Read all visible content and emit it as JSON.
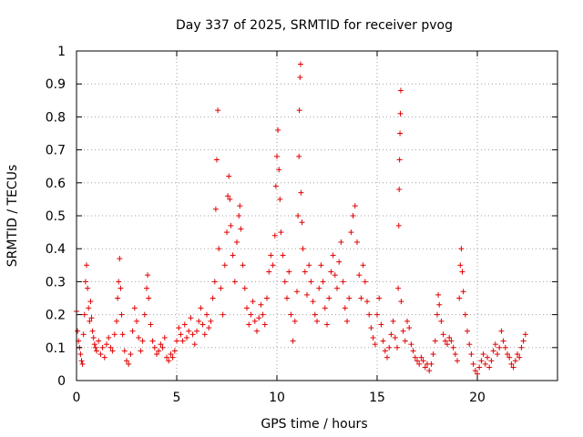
{
  "chart_data": {
    "type": "scatter",
    "title": "Day 337 of 2025, SRMTID for receiver pvog",
    "xlabel": "GPS time / hours",
    "ylabel": "SRMTID / TECUs",
    "xlim": [
      0,
      24
    ],
    "ylim": [
      0,
      1
    ],
    "x_ticks": [
      "0",
      "5",
      "10",
      "15",
      "20"
    ],
    "y_ticks": [
      "0",
      "0.1",
      "0.2",
      "0.3",
      "0.4",
      "0.5",
      "0.6",
      "0.7",
      "0.8",
      "0.9",
      "1"
    ],
    "grid": true,
    "marker": "+",
    "color": "#e00000",
    "series": [
      {
        "name": "pvog",
        "points": [
          [
            0.0,
            0.21
          ],
          [
            0.05,
            0.15
          ],
          [
            0.1,
            0.12
          ],
          [
            0.15,
            0.1
          ],
          [
            0.2,
            0.08
          ],
          [
            0.25,
            0.06
          ],
          [
            0.3,
            0.05
          ],
          [
            0.35,
            0.14
          ],
          [
            0.4,
            0.2
          ],
          [
            0.45,
            0.3
          ],
          [
            0.5,
            0.35
          ],
          [
            0.55,
            0.28
          ],
          [
            0.6,
            0.22
          ],
          [
            0.65,
            0.18
          ],
          [
            0.7,
            0.24
          ],
          [
            0.75,
            0.19
          ],
          [
            0.8,
            0.15
          ],
          [
            0.85,
            0.13
          ],
          [
            0.9,
            0.11
          ],
          [
            0.95,
            0.1
          ],
          [
            1.0,
            0.09
          ],
          [
            1.1,
            0.12
          ],
          [
            1.2,
            0.08
          ],
          [
            1.3,
            0.1
          ],
          [
            1.4,
            0.07
          ],
          [
            1.5,
            0.11
          ],
          [
            1.6,
            0.13
          ],
          [
            1.7,
            0.1
          ],
          [
            1.8,
            0.09
          ],
          [
            1.9,
            0.14
          ],
          [
            2.0,
            0.18
          ],
          [
            2.05,
            0.25
          ],
          [
            2.1,
            0.3
          ],
          [
            2.15,
            0.37
          ],
          [
            2.2,
            0.28
          ],
          [
            2.25,
            0.2
          ],
          [
            2.3,
            0.14
          ],
          [
            2.4,
            0.09
          ],
          [
            2.5,
            0.06
          ],
          [
            2.6,
            0.05
          ],
          [
            2.7,
            0.08
          ],
          [
            2.8,
            0.15
          ],
          [
            2.9,
            0.22
          ],
          [
            3.0,
            0.18
          ],
          [
            3.1,
            0.13
          ],
          [
            3.2,
            0.09
          ],
          [
            3.3,
            0.12
          ],
          [
            3.4,
            0.2
          ],
          [
            3.5,
            0.28
          ],
          [
            3.55,
            0.32
          ],
          [
            3.6,
            0.25
          ],
          [
            3.7,
            0.17
          ],
          [
            3.8,
            0.12
          ],
          [
            3.9,
            0.1
          ],
          [
            4.0,
            0.08
          ],
          [
            4.1,
            0.09
          ],
          [
            4.2,
            0.11
          ],
          [
            4.3,
            0.1
          ],
          [
            4.4,
            0.13
          ],
          [
            4.5,
            0.07
          ],
          [
            4.6,
            0.06
          ],
          [
            4.7,
            0.08
          ],
          [
            4.8,
            0.07
          ],
          [
            4.9,
            0.09
          ],
          [
            5.0,
            0.12
          ],
          [
            5.1,
            0.16
          ],
          [
            5.2,
            0.14
          ],
          [
            5.3,
            0.12
          ],
          [
            5.4,
            0.17
          ],
          [
            5.5,
            0.13
          ],
          [
            5.6,
            0.15
          ],
          [
            5.7,
            0.19
          ],
          [
            5.8,
            0.14
          ],
          [
            5.9,
            0.11
          ],
          [
            6.0,
            0.15
          ],
          [
            6.1,
            0.18
          ],
          [
            6.2,
            0.22
          ],
          [
            6.3,
            0.17
          ],
          [
            6.4,
            0.14
          ],
          [
            6.5,
            0.2
          ],
          [
            6.6,
            0.16
          ],
          [
            6.7,
            0.18
          ],
          [
            6.8,
            0.25
          ],
          [
            6.9,
            0.3
          ],
          [
            6.95,
            0.52
          ],
          [
            7.0,
            0.67
          ],
          [
            7.05,
            0.82
          ],
          [
            7.1,
            0.4
          ],
          [
            7.2,
            0.28
          ],
          [
            7.3,
            0.2
          ],
          [
            7.4,
            0.35
          ],
          [
            7.5,
            0.45
          ],
          [
            7.55,
            0.56
          ],
          [
            7.6,
            0.62
          ],
          [
            7.65,
            0.55
          ],
          [
            7.7,
            0.47
          ],
          [
            7.8,
            0.38
          ],
          [
            7.9,
            0.3
          ],
          [
            8.0,
            0.42
          ],
          [
            8.1,
            0.5
          ],
          [
            8.15,
            0.53
          ],
          [
            8.2,
            0.46
          ],
          [
            8.3,
            0.35
          ],
          [
            8.4,
            0.28
          ],
          [
            8.5,
            0.22
          ],
          [
            8.6,
            0.17
          ],
          [
            8.7,
            0.2
          ],
          [
            8.8,
            0.24
          ],
          [
            8.9,
            0.18
          ],
          [
            9.0,
            0.15
          ],
          [
            9.1,
            0.19
          ],
          [
            9.2,
            0.23
          ],
          [
            9.3,
            0.2
          ],
          [
            9.4,
            0.17
          ],
          [
            9.5,
            0.25
          ],
          [
            9.6,
            0.33
          ],
          [
            9.7,
            0.38
          ],
          [
            9.8,
            0.35
          ],
          [
            9.9,
            0.44
          ],
          [
            9.95,
            0.59
          ],
          [
            10.0,
            0.68
          ],
          [
            10.05,
            0.76
          ],
          [
            10.1,
            0.64
          ],
          [
            10.15,
            0.55
          ],
          [
            10.2,
            0.45
          ],
          [
            10.3,
            0.38
          ],
          [
            10.4,
            0.3
          ],
          [
            10.5,
            0.25
          ],
          [
            10.6,
            0.33
          ],
          [
            10.7,
            0.2
          ],
          [
            10.8,
            0.12
          ],
          [
            10.9,
            0.18
          ],
          [
            11.0,
            0.27
          ],
          [
            11.05,
            0.5
          ],
          [
            11.1,
            0.68
          ],
          [
            11.12,
            0.82
          ],
          [
            11.15,
            0.92
          ],
          [
            11.18,
            0.96
          ],
          [
            11.2,
            0.57
          ],
          [
            11.25,
            0.48
          ],
          [
            11.3,
            0.4
          ],
          [
            11.4,
            0.33
          ],
          [
            11.5,
            0.26
          ],
          [
            11.6,
            0.35
          ],
          [
            11.7,
            0.3
          ],
          [
            11.8,
            0.24
          ],
          [
            11.9,
            0.2
          ],
          [
            12.0,
            0.18
          ],
          [
            12.1,
            0.28
          ],
          [
            12.2,
            0.35
          ],
          [
            12.3,
            0.3
          ],
          [
            12.4,
            0.22
          ],
          [
            12.5,
            0.17
          ],
          [
            12.6,
            0.25
          ],
          [
            12.7,
            0.33
          ],
          [
            12.8,
            0.38
          ],
          [
            12.9,
            0.32
          ],
          [
            13.0,
            0.28
          ],
          [
            13.1,
            0.36
          ],
          [
            13.2,
            0.42
          ],
          [
            13.3,
            0.3
          ],
          [
            13.4,
            0.22
          ],
          [
            13.5,
            0.18
          ],
          [
            13.6,
            0.25
          ],
          [
            13.7,
            0.45
          ],
          [
            13.8,
            0.5
          ],
          [
            13.9,
            0.53
          ],
          [
            14.0,
            0.42
          ],
          [
            14.1,
            0.32
          ],
          [
            14.2,
            0.25
          ],
          [
            14.3,
            0.35
          ],
          [
            14.4,
            0.3
          ],
          [
            14.5,
            0.24
          ],
          [
            14.6,
            0.2
          ],
          [
            14.7,
            0.16
          ],
          [
            14.8,
            0.13
          ],
          [
            14.9,
            0.11
          ],
          [
            15.0,
            0.2
          ],
          [
            15.1,
            0.25
          ],
          [
            15.2,
            0.17
          ],
          [
            15.3,
            0.12
          ],
          [
            15.4,
            0.09
          ],
          [
            15.5,
            0.07
          ],
          [
            15.6,
            0.1
          ],
          [
            15.7,
            0.14
          ],
          [
            15.8,
            0.18
          ],
          [
            15.9,
            0.13
          ],
          [
            16.0,
            0.1
          ],
          [
            16.05,
            0.28
          ],
          [
            16.08,
            0.47
          ],
          [
            16.1,
            0.58
          ],
          [
            16.12,
            0.67
          ],
          [
            16.14,
            0.75
          ],
          [
            16.16,
            0.81
          ],
          [
            16.18,
            0.88
          ],
          [
            16.2,
            0.24
          ],
          [
            16.3,
            0.15
          ],
          [
            16.4,
            0.12
          ],
          [
            16.5,
            0.18
          ],
          [
            16.6,
            0.16
          ],
          [
            16.7,
            0.11
          ],
          [
            16.8,
            0.09
          ],
          [
            16.9,
            0.07
          ],
          [
            17.0,
            0.06
          ],
          [
            17.1,
            0.05
          ],
          [
            17.2,
            0.07
          ],
          [
            17.3,
            0.06
          ],
          [
            17.4,
            0.04
          ],
          [
            17.5,
            0.05
          ],
          [
            17.6,
            0.03
          ],
          [
            17.7,
            0.05
          ],
          [
            17.8,
            0.08
          ],
          [
            17.9,
            0.12
          ],
          [
            18.0,
            0.2
          ],
          [
            18.05,
            0.26
          ],
          [
            18.1,
            0.23
          ],
          [
            18.2,
            0.18
          ],
          [
            18.3,
            0.14
          ],
          [
            18.4,
            0.12
          ],
          [
            18.5,
            0.11
          ],
          [
            18.6,
            0.13
          ],
          [
            18.7,
            0.12
          ],
          [
            18.8,
            0.1
          ],
          [
            18.9,
            0.08
          ],
          [
            19.0,
            0.06
          ],
          [
            19.1,
            0.25
          ],
          [
            19.15,
            0.35
          ],
          [
            19.2,
            0.4
          ],
          [
            19.25,
            0.33
          ],
          [
            19.3,
            0.27
          ],
          [
            19.4,
            0.2
          ],
          [
            19.5,
            0.15
          ],
          [
            19.6,
            0.11
          ],
          [
            19.7,
            0.08
          ],
          [
            19.8,
            0.05
          ],
          [
            19.9,
            0.03
          ],
          [
            20.0,
            0.02
          ],
          [
            20.1,
            0.04
          ],
          [
            20.2,
            0.06
          ],
          [
            20.3,
            0.08
          ],
          [
            20.4,
            0.05
          ],
          [
            20.5,
            0.07
          ],
          [
            20.6,
            0.04
          ],
          [
            20.7,
            0.06
          ],
          [
            20.8,
            0.09
          ],
          [
            20.9,
            0.11
          ],
          [
            21.0,
            0.08
          ],
          [
            21.1,
            0.1
          ],
          [
            21.2,
            0.15
          ],
          [
            21.3,
            0.12
          ],
          [
            21.4,
            0.1
          ],
          [
            21.5,
            0.08
          ],
          [
            21.6,
            0.07
          ],
          [
            21.7,
            0.05
          ],
          [
            21.8,
            0.04
          ],
          [
            21.9,
            0.06
          ],
          [
            22.0,
            0.08
          ],
          [
            22.1,
            0.07
          ],
          [
            22.2,
            0.1
          ],
          [
            22.3,
            0.12
          ],
          [
            22.4,
            0.14
          ]
        ]
      }
    ]
  }
}
